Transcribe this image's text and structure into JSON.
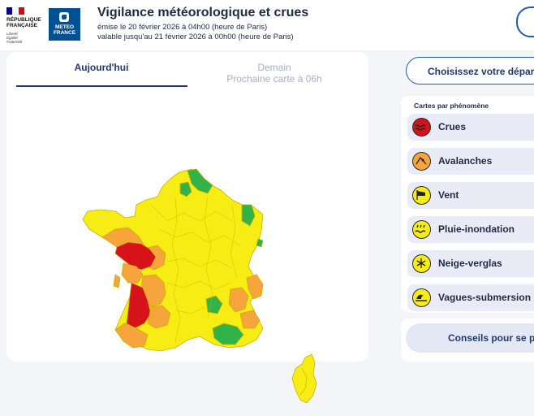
{
  "header": {
    "rf_logo_line1": "RÉPUBLIQUE",
    "rf_logo_line2": "FRANÇAISE",
    "rf_motto": "Liberté\nÉgalité\nFraternité",
    "mf_logo_text": "METEO\nFRANCE",
    "title": "Vigilance météorologique et crues",
    "issued": "émise le 20 février 2026 à 04h00 (heure de Paris)",
    "valid": "valable jusqu'au 21 février 2026 à 00h00 (heure de Paris)"
  },
  "tabs": {
    "today": "Aujourd'hui",
    "tomorrow_line1": "Demain",
    "tomorrow_line2": "Prochaine carte à 06h"
  },
  "map": {
    "colors": {
      "yellow": "#f7ec14",
      "orange": "#f6a53c",
      "red": "#d6121b",
      "green": "#31b34a",
      "border": "#c9b000"
    }
  },
  "sidebar": {
    "choose_button": "Choisissez votre départ",
    "cards_title": "Cartes par phénomène",
    "phenomena": [
      {
        "label": "Crues",
        "icon": "flood-waves-icon",
        "color": "#d6121b"
      },
      {
        "label": "Avalanches",
        "icon": "avalanche-icon",
        "color": "#f6a53c"
      },
      {
        "label": "Vent",
        "icon": "wind-flag-icon",
        "color": "#f7ec14"
      },
      {
        "label": "Pluie-inondation",
        "icon": "rain-flood-icon",
        "color": "#f7ec14"
      },
      {
        "label": "Neige-verglas",
        "icon": "snowflake-icon",
        "color": "#f7ec14"
      },
      {
        "label": "Vagues-submersion",
        "icon": "wave-submersion-icon",
        "color": "#f7ec14"
      }
    ],
    "advice_button": "Conseils pour se p"
  }
}
